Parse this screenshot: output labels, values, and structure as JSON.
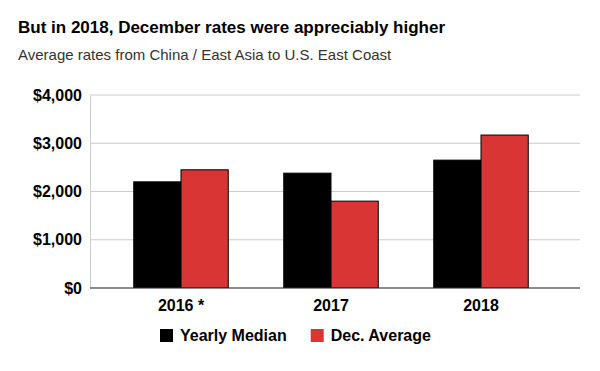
{
  "chart_data": {
    "type": "bar",
    "title": "But in 2018, December rates were appreciably higher",
    "subtitle": "Average rates from China / East Asia to U.S. East Coast",
    "categories": [
      "2016 *",
      "2017",
      "2018"
    ],
    "series": [
      {
        "name": "Yearly Median",
        "color": "#000000",
        "values": [
          2200,
          2380,
          2650
        ]
      },
      {
        "name": "Dec. Average",
        "color": "#d93534",
        "values": [
          2450,
          1800,
          3170
        ]
      }
    ],
    "ylim": [
      0,
      4000
    ],
    "yticks": [
      {
        "value": 0,
        "label": "$0"
      },
      {
        "value": 1000,
        "label": "$1,000"
      },
      {
        "value": 2000,
        "label": "$2,000"
      },
      {
        "value": 3000,
        "label": "$3,000"
      },
      {
        "value": 4000,
        "label": "$4,000"
      }
    ],
    "grid": true,
    "legend": "bottom"
  }
}
